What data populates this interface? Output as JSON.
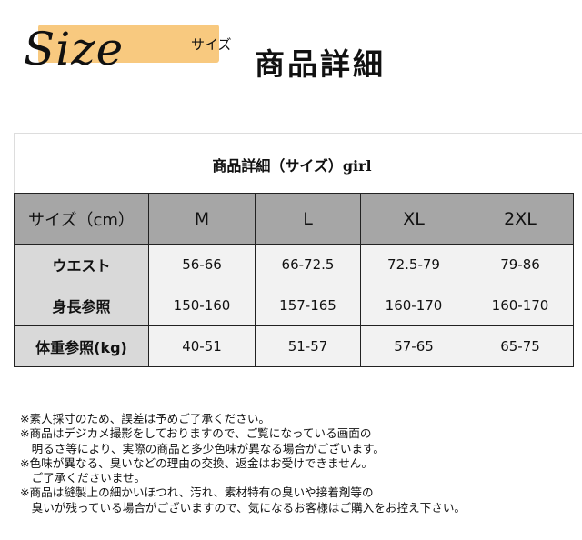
{
  "header": {
    "size_logo": "Size",
    "sub": "サイズ",
    "title": "商品詳細",
    "highlight_color": "#f8c97f"
  },
  "table": {
    "caption": "商品詳細（サイズ）girl",
    "columns": [
      "サイズ（cm）",
      "M",
      "L",
      "XL",
      "2XL"
    ],
    "rows": [
      {
        "label": "ウエスト",
        "values": [
          "56-66",
          "66-72.5",
          "72.5-79",
          "79-86"
        ]
      },
      {
        "label": "身長参照",
        "values": [
          "150-160",
          "157-165",
          "160-170",
          "160-170"
        ]
      },
      {
        "label": "体重参照(kg)",
        "values": [
          "40-51",
          "51-57",
          "57-65",
          "65-75"
        ]
      }
    ]
  },
  "notes": [
    "※素人採寸のため、誤差は予めご了承ください。",
    "※商品はデジカメ撮影をしておりますので、ご覧になっている画面の",
    "　明るさ等により、実際の商品と多少色味が異なる場合がございます。",
    "※色味が異なる、臭いなどの理由の交換、返金はお受けできません。",
    "　ご了承くださいませ。",
    "※商品は縫製上の細かいほつれ、汚れ、素材特有の臭いや接着剤等の",
    "　臭いが残っている場合がございますので、気になるお客様はご購入をお控え下さい。"
  ]
}
